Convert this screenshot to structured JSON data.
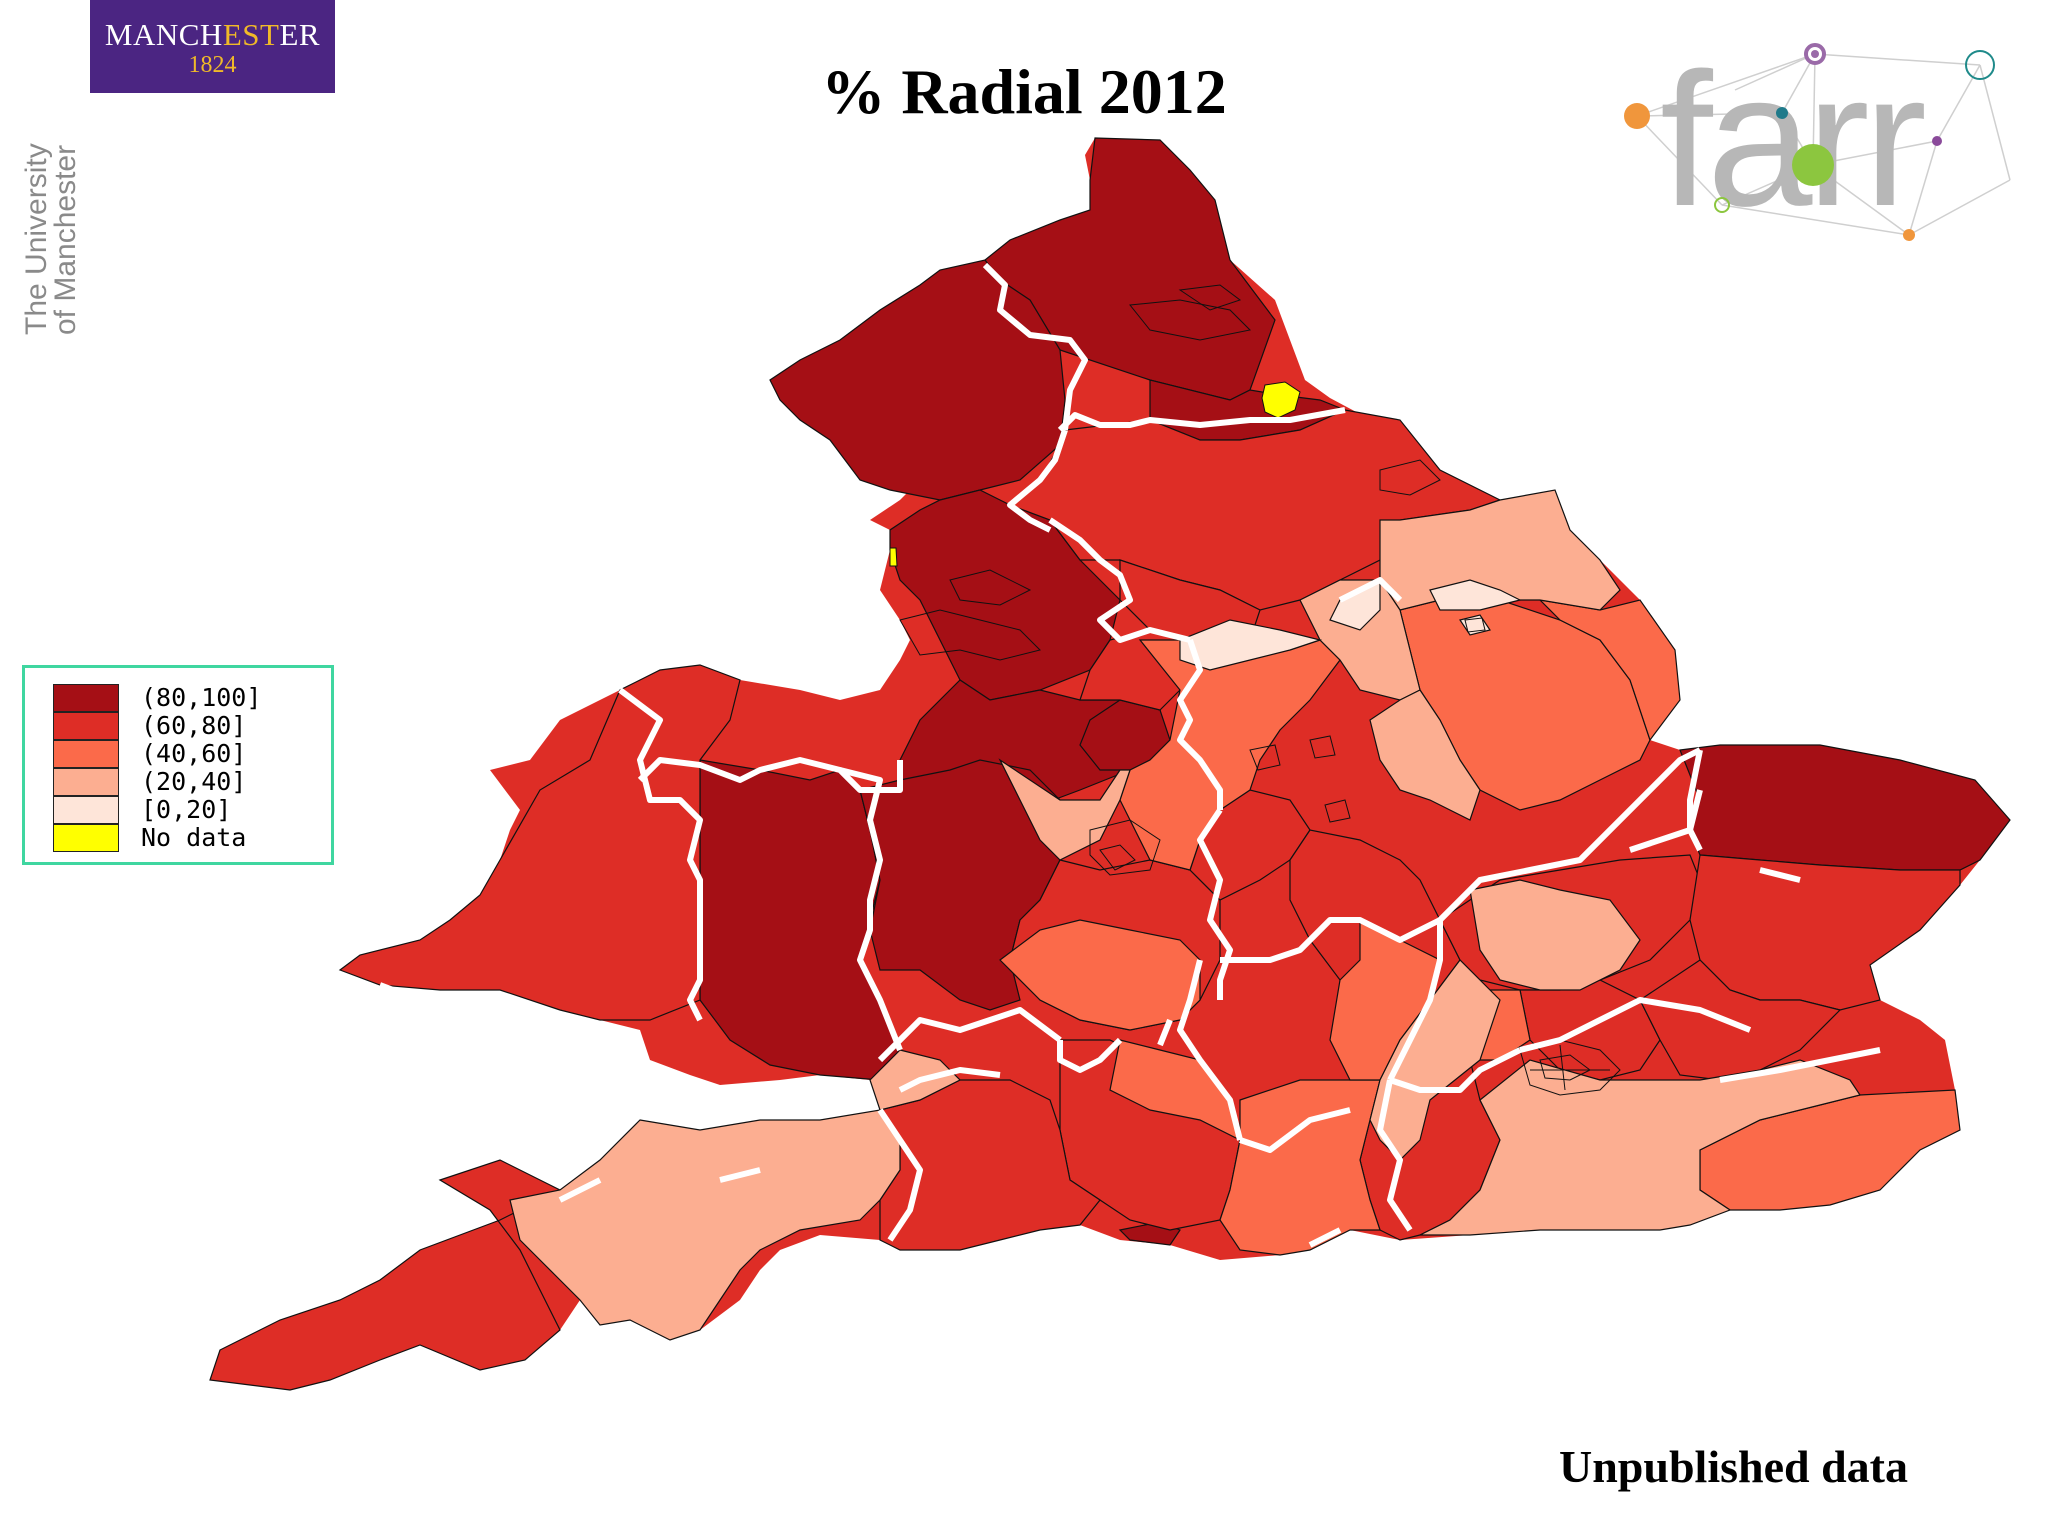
{
  "header": {
    "title": "% Radial 2012"
  },
  "logos": {
    "manchester": {
      "name_part1": "MANCH",
      "name_accent": "EST",
      "name_part2": "ER",
      "year": "1824"
    },
    "university_vertical": {
      "line1": "The University",
      "line2": "of Manchester"
    },
    "farr": {
      "wordmark": "farr"
    }
  },
  "legend": {
    "items": [
      {
        "label": "(80,100]",
        "color": "#a50f15"
      },
      {
        "label": "(60,80]",
        "color": "#de2d26"
      },
      {
        "label": "(40,60]",
        "color": "#fb6a4a"
      },
      {
        "label": "(20,40]",
        "color": "#fcae91"
      },
      {
        "label": "[0,20]",
        "color": "#fee5d9"
      },
      {
        "label": "No data",
        "color": "#ffff00"
      }
    ]
  },
  "colors": {
    "network_lines": "#c8c8c8",
    "region_border": "#ffffff",
    "area_border": "#111111"
  },
  "footer": {
    "note": "Unpublished data"
  }
}
